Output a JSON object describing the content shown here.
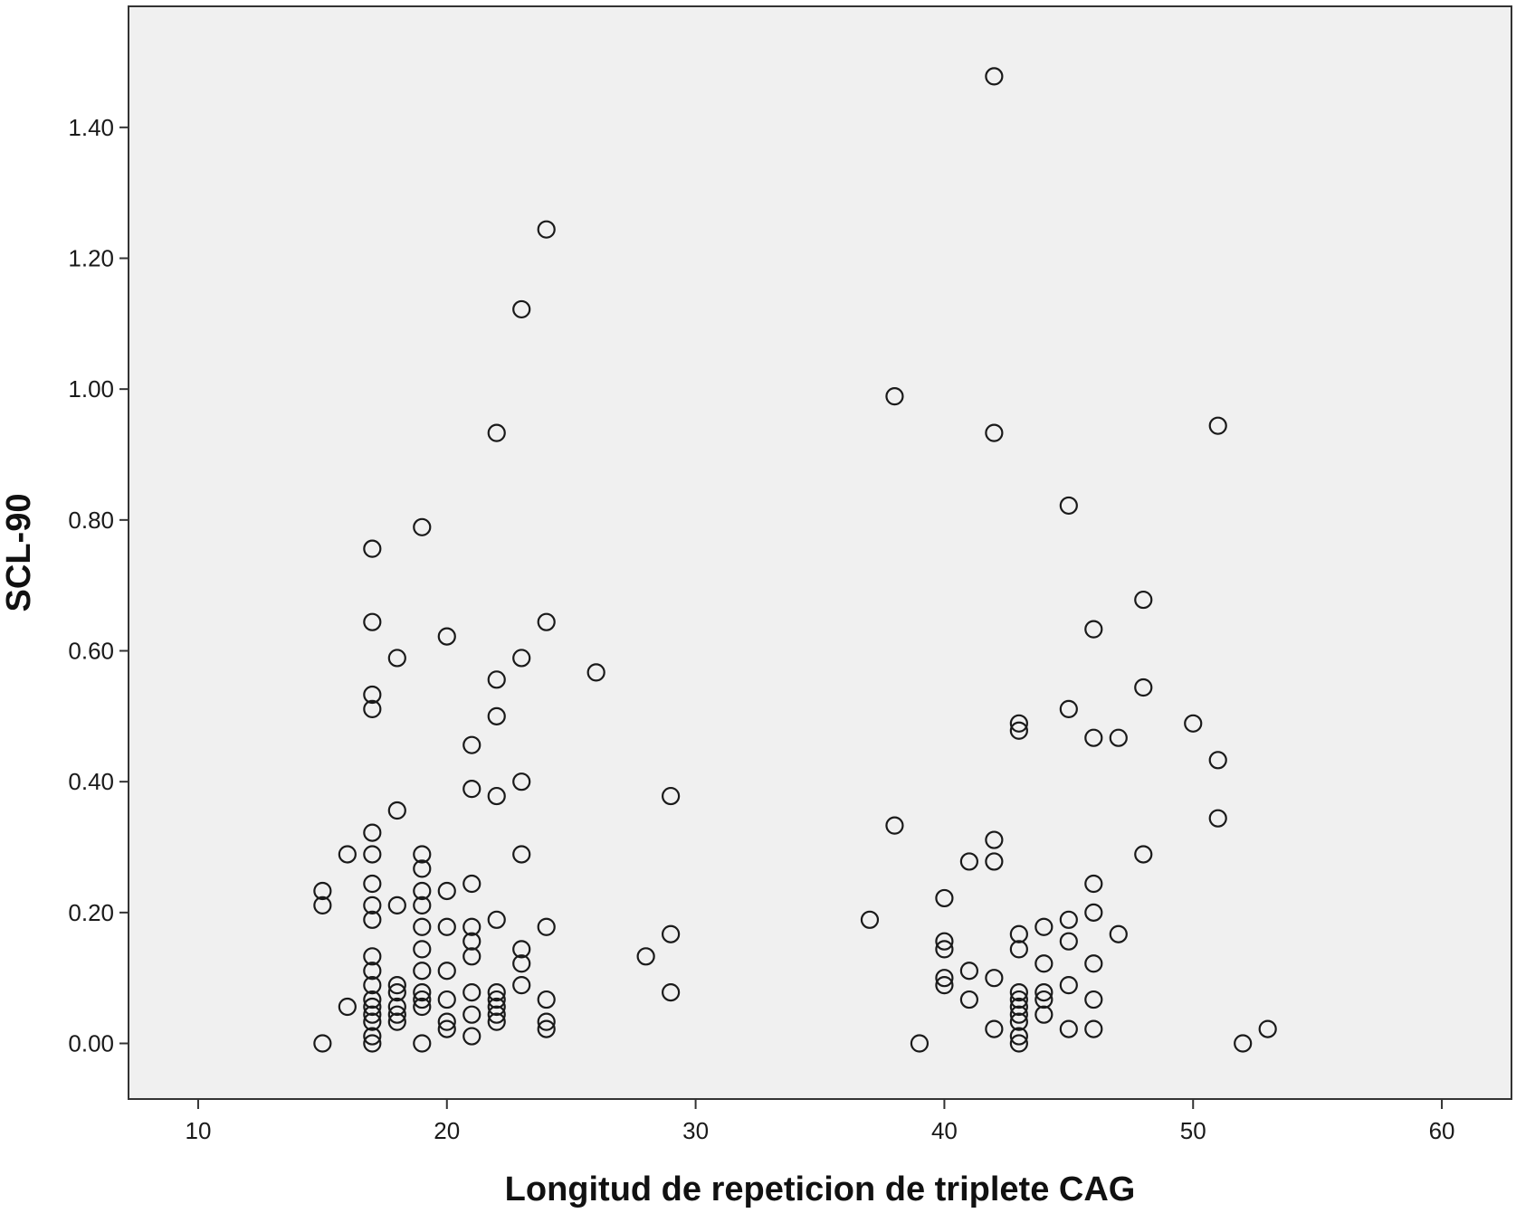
{
  "chart_data": {
    "type": "scatter",
    "title": "",
    "xlabel": "Longitud de repeticion de triplete CAG",
    "ylabel": "SCL-90",
    "xlim": [
      7.2,
      62.8
    ],
    "ylim": [
      -0.085,
      1.585
    ],
    "x_ticks": [
      "10",
      "20",
      "30",
      "40",
      "50",
      "60"
    ],
    "x_tick_values": [
      10,
      20,
      30,
      40,
      50,
      60
    ],
    "y_ticks": [
      "0.00",
      "0.20",
      "0.40",
      "0.60",
      "0.80",
      "1.00",
      "1.20",
      "1.40"
    ],
    "y_tick_values": [
      0,
      0.2,
      0.4,
      0.6,
      0.8,
      1.0,
      1.2,
      1.4
    ],
    "grid": false,
    "legend": "none",
    "colors": {
      "plot_background": "#f0f0f0",
      "frame": "#333333",
      "marker_stroke": "#1a1a1a",
      "marker_fill": "none"
    },
    "marker": "circle-open",
    "points": [
      [
        15,
        0.233
      ],
      [
        15,
        0.211
      ],
      [
        15,
        0.0
      ],
      [
        16,
        0.289
      ],
      [
        16,
        0.056
      ],
      [
        17,
        0.756
      ],
      [
        17,
        0.644
      ],
      [
        17,
        0.533
      ],
      [
        17,
        0.511
      ],
      [
        17,
        0.322
      ],
      [
        17,
        0.289
      ],
      [
        17,
        0.244
      ],
      [
        17,
        0.211
      ],
      [
        17,
        0.189
      ],
      [
        17,
        0.133
      ],
      [
        17,
        0.111
      ],
      [
        17,
        0.089
      ],
      [
        17,
        0.067
      ],
      [
        17,
        0.056
      ],
      [
        17,
        0.044
      ],
      [
        17,
        0.033
      ],
      [
        17,
        0.011
      ],
      [
        17,
        0.0
      ],
      [
        18,
        0.589
      ],
      [
        18,
        0.356
      ],
      [
        18,
        0.211
      ],
      [
        18,
        0.089
      ],
      [
        18,
        0.078
      ],
      [
        18,
        0.056
      ],
      [
        18,
        0.044
      ],
      [
        18,
        0.033
      ],
      [
        19,
        0.789
      ],
      [
        19,
        0.289
      ],
      [
        19,
        0.267
      ],
      [
        19,
        0.233
      ],
      [
        19,
        0.211
      ],
      [
        19,
        0.178
      ],
      [
        19,
        0.144
      ],
      [
        19,
        0.111
      ],
      [
        19,
        0.078
      ],
      [
        19,
        0.067
      ],
      [
        19,
        0.056
      ],
      [
        19,
        0.0
      ],
      [
        20,
        0.622
      ],
      [
        20,
        0.233
      ],
      [
        20,
        0.178
      ],
      [
        20,
        0.111
      ],
      [
        20,
        0.067
      ],
      [
        20,
        0.033
      ],
      [
        20,
        0.022
      ],
      [
        21,
        0.456
      ],
      [
        21,
        0.389
      ],
      [
        21,
        0.244
      ],
      [
        21,
        0.178
      ],
      [
        21,
        0.156
      ],
      [
        21,
        0.133
      ],
      [
        21,
        0.078
      ],
      [
        21,
        0.044
      ],
      [
        21,
        0.011
      ],
      [
        22,
        0.933
      ],
      [
        22,
        0.556
      ],
      [
        22,
        0.5
      ],
      [
        22,
        0.378
      ],
      [
        22,
        0.189
      ],
      [
        22,
        0.078
      ],
      [
        22,
        0.067
      ],
      [
        22,
        0.056
      ],
      [
        22,
        0.044
      ],
      [
        22,
        0.033
      ],
      [
        23,
        1.122
      ],
      [
        23,
        0.589
      ],
      [
        23,
        0.4
      ],
      [
        23,
        0.289
      ],
      [
        23,
        0.144
      ],
      [
        23,
        0.122
      ],
      [
        23,
        0.089
      ],
      [
        24,
        1.244
      ],
      [
        24,
        0.644
      ],
      [
        24,
        0.178
      ],
      [
        24,
        0.067
      ],
      [
        24,
        0.033
      ],
      [
        24,
        0.022
      ],
      [
        26,
        0.567
      ],
      [
        28,
        0.133
      ],
      [
        29,
        0.378
      ],
      [
        29,
        0.167
      ],
      [
        29,
        0.078
      ],
      [
        37,
        0.189
      ],
      [
        38,
        0.989
      ],
      [
        38,
        0.333
      ],
      [
        39,
        0.0
      ],
      [
        40,
        0.222
      ],
      [
        40,
        0.156
      ],
      [
        40,
        0.144
      ],
      [
        40,
        0.1
      ],
      [
        40,
        0.089
      ],
      [
        41,
        0.278
      ],
      [
        41,
        0.111
      ],
      [
        41,
        0.067
      ],
      [
        42,
        1.478
      ],
      [
        42,
        0.933
      ],
      [
        42,
        0.311
      ],
      [
        42,
        0.278
      ],
      [
        42,
        0.1
      ],
      [
        42,
        0.022
      ],
      [
        43,
        0.489
      ],
      [
        43,
        0.478
      ],
      [
        43,
        0.167
      ],
      [
        43,
        0.144
      ],
      [
        43,
        0.078
      ],
      [
        43,
        0.067
      ],
      [
        43,
        0.056
      ],
      [
        43,
        0.044
      ],
      [
        43,
        0.033
      ],
      [
        43,
        0.011
      ],
      [
        43,
        0.0
      ],
      [
        44,
        0.178
      ],
      [
        44,
        0.122
      ],
      [
        44,
        0.078
      ],
      [
        44,
        0.067
      ],
      [
        44,
        0.044
      ],
      [
        45,
        0.822
      ],
      [
        45,
        0.511
      ],
      [
        45,
        0.189
      ],
      [
        45,
        0.156
      ],
      [
        45,
        0.089
      ],
      [
        45,
        0.022
      ],
      [
        46,
        0.633
      ],
      [
        46,
        0.467
      ],
      [
        46,
        0.244
      ],
      [
        46,
        0.2
      ],
      [
        46,
        0.122
      ],
      [
        46,
        0.067
      ],
      [
        46,
        0.022
      ],
      [
        47,
        0.467
      ],
      [
        47,
        0.167
      ],
      [
        48,
        0.678
      ],
      [
        48,
        0.544
      ],
      [
        48,
        0.289
      ],
      [
        50,
        0.489
      ],
      [
        51,
        0.944
      ],
      [
        51,
        0.433
      ],
      [
        51,
        0.344
      ],
      [
        52,
        0.0
      ],
      [
        53,
        0.022
      ]
    ]
  }
}
